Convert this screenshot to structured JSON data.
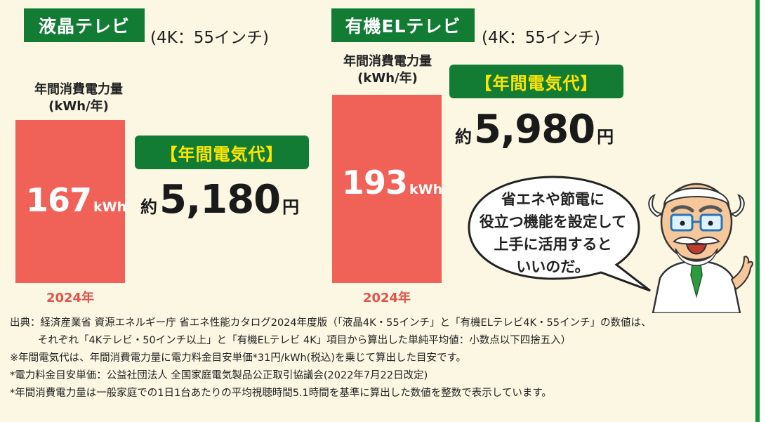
{
  "chart_data": [
    {
      "type": "bar",
      "title": "液晶テレビ",
      "subtitle": "(4K：55インチ)",
      "ylabel": "年間消費電力量\n(kWh/年)",
      "categories": [
        "2024年"
      ],
      "values": [
        167
      ],
      "value_unit": "kWh",
      "ylim": [
        0,
        200
      ],
      "cost_label": "【年間電気代】",
      "cost_prefix": "約",
      "cost_value": "5,180",
      "cost_unit": "円"
    },
    {
      "type": "bar",
      "title": "有機ELテレビ",
      "subtitle": "(4K：55インチ)",
      "ylabel": "年間消費電力量\n(kWh/年)",
      "categories": [
        "2024年"
      ],
      "values": [
        193
      ],
      "value_unit": "kWh",
      "ylim": [
        0,
        200
      ],
      "cost_label": "【年間電気代】",
      "cost_prefix": "約",
      "cost_value": "5,980",
      "cost_unit": "円"
    }
  ],
  "speech_bubble": {
    "lines": [
      "省エネや節電に",
      "役立つ機能を設定して",
      "上手に活用すると",
      "いいのだ。"
    ]
  },
  "notes": {
    "source_1": "出典：経済産業省 資源エネルギー庁 省エネ性能カタログ2024年度版（「液晶4K・55インチ」と「有機ELテレビ4K・55インチ」の数値は、",
    "source_2": "それぞれ「4Kテレビ・50インチ以上」と「有機ELテレビ 4K」項目から算出した単純平均値：小数点以下四捨五入）",
    "note_1": "※年間電気代は、年間消費電力量に電力料金目安単価*31円/kWh(税込)を乗じて算出した目安です。",
    "note_2": "*電力料金目安単価：公益社団法人 全国家庭電気製品公正取引協議会(2022年7月22日改定)",
    "note_3": "*年間消費電力量は一般家庭での1日1台あたりの平均視聴時間5.1時間を基準に算出した数値を整数で表示しています。"
  },
  "colors": {
    "green": "#127c35",
    "bar": "#f06157",
    "yellow": "#ffe600",
    "year_text": "#e2534a",
    "background": "#fbf7e3"
  }
}
